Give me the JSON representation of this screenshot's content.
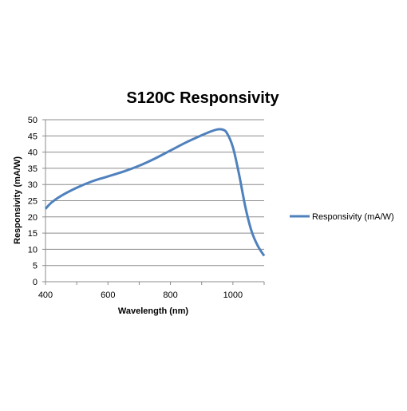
{
  "chart_data": {
    "type": "line",
    "title": "S120C Responsivity",
    "xlabel": "Wavelength (nm)",
    "ylabel": "Responsivity (mA/W)",
    "xlim": [
      400,
      1100
    ],
    "ylim": [
      0,
      50
    ],
    "x_ticks": [
      400,
      600,
      800,
      1000
    ],
    "y_ticks": [
      0,
      5,
      10,
      15,
      20,
      25,
      30,
      35,
      40,
      45,
      50
    ],
    "grid": "horizontal",
    "legend_position": "right",
    "series": [
      {
        "name": "Responsivity (mA/W)",
        "color": "#4F81BD",
        "x": [
          400,
          420,
          450,
          500,
          550,
          600,
          650,
          700,
          750,
          800,
          850,
          900,
          930,
          950,
          965,
          980,
          1000,
          1020,
          1040,
          1060,
          1080,
          1100
        ],
        "y": [
          22.5,
          24.5,
          26.5,
          29.0,
          31.0,
          32.5,
          34.0,
          35.8,
          38.0,
          40.5,
          43.0,
          45.2,
          46.4,
          47.0,
          47.0,
          46.0,
          41.5,
          33.0,
          23.0,
          15.5,
          11.0,
          8.0
        ]
      }
    ]
  }
}
